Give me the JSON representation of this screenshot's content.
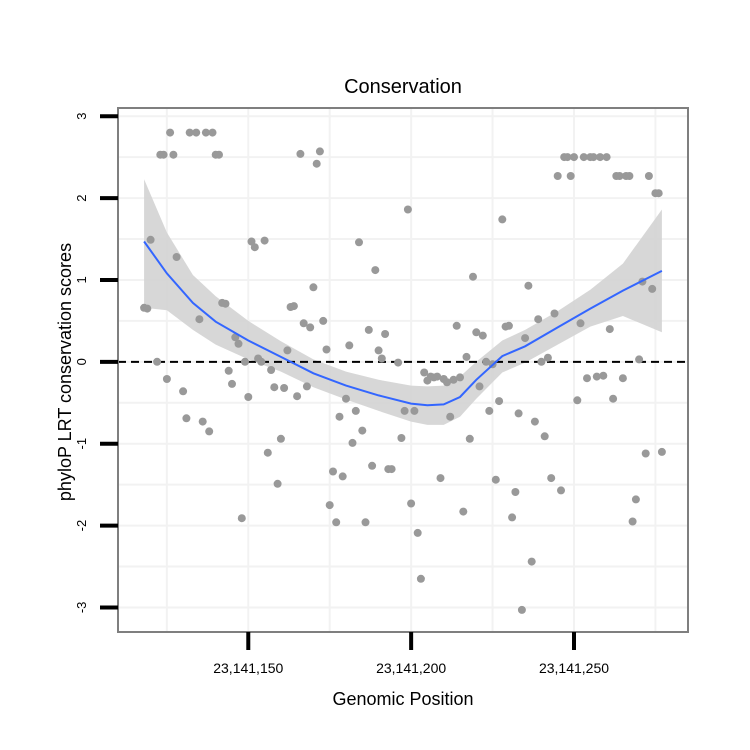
{
  "chart_data": {
    "type": "scatter",
    "title": "Conservation",
    "xlabel": "Genomic Position",
    "ylabel": "phyloP LRT conservation scores",
    "xlim": [
      23141110,
      23141285
    ],
    "ylim": [
      -3.3,
      3.1
    ],
    "x_ticks": [
      23141150,
      23141200,
      23141250
    ],
    "x_tick_labels": [
      "23,141,150",
      "23,141,200",
      "23,141,250"
    ],
    "y_ticks": [
      -3,
      -2,
      -1,
      0,
      1,
      2,
      3
    ],
    "y_tick_labels": [
      "-3",
      "-2",
      "-1",
      "0",
      "1",
      "2",
      "3"
    ],
    "grid": true,
    "reference_line": {
      "y": 0,
      "style": "dashed"
    },
    "colors": {
      "points": "#999999",
      "smooth": "#3366ff",
      "band": "#d3d3d3",
      "grid": "#f2f2f2",
      "frame": "#7f7f7f"
    },
    "points": [
      [
        23141118,
        0.66
      ],
      [
        23141119,
        0.65
      ],
      [
        23141120,
        1.49
      ],
      [
        23141122,
        0.0
      ],
      [
        23141123,
        2.53
      ],
      [
        23141124,
        2.53
      ],
      [
        23141125,
        -0.21
      ],
      [
        23141126,
        2.8
      ],
      [
        23141127,
        2.53
      ],
      [
        23141128,
        1.28
      ],
      [
        23141130,
        -0.36
      ],
      [
        23141131,
        -0.69
      ],
      [
        23141132,
        2.8
      ],
      [
        23141134,
        2.8
      ],
      [
        23141135,
        0.52
      ],
      [
        23141136,
        -0.73
      ],
      [
        23141137,
        2.8
      ],
      [
        23141138,
        -0.85
      ],
      [
        23141139,
        2.8
      ],
      [
        23141140,
        2.53
      ],
      [
        23141141,
        2.53
      ],
      [
        23141142,
        0.72
      ],
      [
        23141143,
        0.71
      ],
      [
        23141144,
        -0.11
      ],
      [
        23141145,
        -0.27
      ],
      [
        23141146,
        0.3
      ],
      [
        23141147,
        0.22
      ],
      [
        23141148,
        -1.91
      ],
      [
        23141149,
        0.0
      ],
      [
        23141150,
        -0.43
      ],
      [
        23141151,
        1.47
      ],
      [
        23141152,
        1.4
      ],
      [
        23141153,
        0.04
      ],
      [
        23141154,
        0.0
      ],
      [
        23141155,
        1.48
      ],
      [
        23141156,
        -1.11
      ],
      [
        23141157,
        -0.1
      ],
      [
        23141158,
        -0.31
      ],
      [
        23141159,
        -1.49
      ],
      [
        23141160,
        -0.94
      ],
      [
        23141161,
        -0.32
      ],
      [
        23141162,
        0.14
      ],
      [
        23141163,
        0.67
      ],
      [
        23141164,
        0.68
      ],
      [
        23141165,
        -0.42
      ],
      [
        23141166,
        2.54
      ],
      [
        23141167,
        0.47
      ],
      [
        23141168,
        -0.3
      ],
      [
        23141169,
        0.42
      ],
      [
        23141170,
        0.91
      ],
      [
        23141171,
        2.42
      ],
      [
        23141172,
        2.57
      ],
      [
        23141173,
        0.5
      ],
      [
        23141174,
        0.15
      ],
      [
        23141175,
        -1.75
      ],
      [
        23141176,
        -1.34
      ],
      [
        23141177,
        -1.96
      ],
      [
        23141178,
        -0.67
      ],
      [
        23141179,
        -1.4
      ],
      [
        23141180,
        -0.45
      ],
      [
        23141181,
        0.2
      ],
      [
        23141182,
        -0.99
      ],
      [
        23141183,
        -0.6
      ],
      [
        23141184,
        1.46
      ],
      [
        23141185,
        -0.84
      ],
      [
        23141186,
        -1.96
      ],
      [
        23141187,
        0.39
      ],
      [
        23141188,
        -1.27
      ],
      [
        23141189,
        1.12
      ],
      [
        23141190,
        0.14
      ],
      [
        23141191,
        0.04
      ],
      [
        23141192,
        0.34
      ],
      [
        23141193,
        -1.31
      ],
      [
        23141194,
        -1.31
      ],
      [
        23141196,
        -0.01
      ],
      [
        23141197,
        -0.93
      ],
      [
        23141198,
        -0.6
      ],
      [
        23141199,
        1.86
      ],
      [
        23141200,
        -1.73
      ],
      [
        23141201,
        -0.6
      ],
      [
        23141202,
        -2.09
      ],
      [
        23141203,
        -2.65
      ],
      [
        23141204,
        -0.13
      ],
      [
        23141205,
        -0.23
      ],
      [
        23141206,
        -0.18
      ],
      [
        23141207,
        -0.19
      ],
      [
        23141208,
        -0.18
      ],
      [
        23141209,
        -1.42
      ],
      [
        23141210,
        -0.21
      ],
      [
        23141211,
        -0.25
      ],
      [
        23141212,
        -0.67
      ],
      [
        23141213,
        -0.22
      ],
      [
        23141214,
        0.44
      ],
      [
        23141215,
        -0.19
      ],
      [
        23141216,
        -1.83
      ],
      [
        23141217,
        0.06
      ],
      [
        23141218,
        -0.94
      ],
      [
        23141219,
        1.04
      ],
      [
        23141220,
        0.36
      ],
      [
        23141221,
        -0.3
      ],
      [
        23141222,
        0.32
      ],
      [
        23141223,
        0.0
      ],
      [
        23141224,
        -0.6
      ],
      [
        23141225,
        -0.03
      ],
      [
        23141226,
        -1.44
      ],
      [
        23141227,
        -0.48
      ],
      [
        23141228,
        1.74
      ],
      [
        23141229,
        0.43
      ],
      [
        23141230,
        0.44
      ],
      [
        23141231,
        -1.9
      ],
      [
        23141232,
        -1.59
      ],
      [
        23141233,
        -0.63
      ],
      [
        23141234,
        -3.03
      ],
      [
        23141235,
        0.29
      ],
      [
        23141236,
        0.93
      ],
      [
        23141237,
        -2.44
      ],
      [
        23141238,
        -0.73
      ],
      [
        23141239,
        0.52
      ],
      [
        23141240,
        0.0
      ],
      [
        23141241,
        -0.91
      ],
      [
        23141242,
        0.05
      ],
      [
        23141243,
        -1.42
      ],
      [
        23141244,
        0.59
      ],
      [
        23141245,
        2.27
      ],
      [
        23141246,
        -1.57
      ],
      [
        23141247,
        2.5
      ],
      [
        23141248,
        2.5
      ],
      [
        23141249,
        2.27
      ],
      [
        23141250,
        2.5
      ],
      [
        23141251,
        -0.47
      ],
      [
        23141252,
        0.47
      ],
      [
        23141253,
        2.5
      ],
      [
        23141254,
        -0.2
      ],
      [
        23141255,
        2.5
      ],
      [
        23141256,
        2.5
      ],
      [
        23141257,
        -0.18
      ],
      [
        23141258,
        2.5
      ],
      [
        23141259,
        -0.17
      ],
      [
        23141260,
        2.5
      ],
      [
        23141261,
        0.4
      ],
      [
        23141262,
        -0.45
      ],
      [
        23141263,
        2.27
      ],
      [
        23141264,
        2.27
      ],
      [
        23141265,
        -0.2
      ],
      [
        23141266,
        2.27
      ],
      [
        23141267,
        2.27
      ],
      [
        23141268,
        -1.95
      ],
      [
        23141269,
        -1.68
      ],
      [
        23141270,
        0.03
      ],
      [
        23141271,
        0.98
      ],
      [
        23141272,
        -1.12
      ],
      [
        23141273,
        2.27
      ],
      [
        23141274,
        0.89
      ],
      [
        23141275,
        2.06
      ],
      [
        23141276,
        2.06
      ],
      [
        23141277,
        -1.1
      ]
    ],
    "smooth": {
      "x": [
        23141118,
        23141125,
        23141133,
        23141140,
        23141150,
        23141160,
        23141170,
        23141180,
        23141190,
        23141200,
        23141205,
        23141210,
        23141215,
        23141220,
        23141228,
        23141235,
        23141245,
        23141255,
        23141265,
        23141277
      ],
      "y": [
        1.47,
        1.08,
        0.72,
        0.49,
        0.26,
        0.06,
        -0.14,
        -0.29,
        -0.41,
        -0.51,
        -0.53,
        -0.52,
        -0.43,
        -0.22,
        0.07,
        0.19,
        0.42,
        0.65,
        0.87,
        1.11
      ],
      "lower": [
        0.66,
        0.63,
        0.39,
        0.21,
        0.03,
        -0.12,
        -0.31,
        -0.46,
        -0.6,
        -0.73,
        -0.77,
        -0.77,
        -0.67,
        -0.45,
        -0.13,
        -0.01,
        0.21,
        0.43,
        0.56,
        0.36
      ],
      "upper": [
        2.23,
        1.58,
        1.06,
        0.8,
        0.5,
        0.25,
        0.03,
        -0.12,
        -0.22,
        -0.29,
        -0.3,
        -0.29,
        -0.18,
        0.0,
        0.26,
        0.39,
        0.62,
        0.88,
        1.2,
        1.86
      ]
    }
  }
}
